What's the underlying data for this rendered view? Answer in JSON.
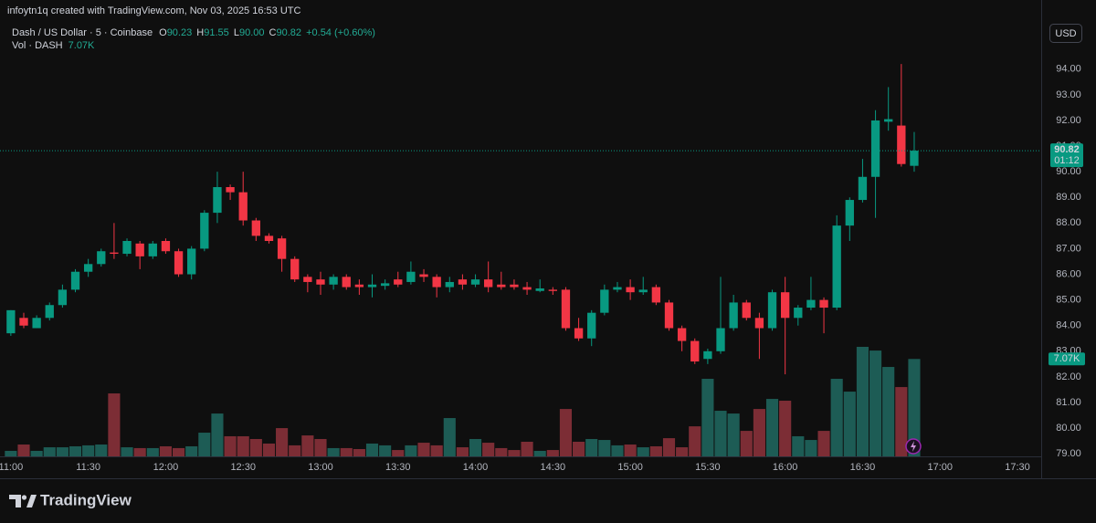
{
  "header": {
    "attribution": "infoytn1q created with TradingView.com, Nov 03, 2025 16:53 UTC"
  },
  "legend": {
    "symbol": "Dash / US Dollar · 5 · Coinbase",
    "o_key": "O",
    "open": "90.23",
    "h_key": "H",
    "high": "91.55",
    "l_key": "L",
    "low": "90.00",
    "c_key": "C",
    "close": "90.82",
    "change": "+0.54 (+0.60%)",
    "vol_name": "Vol · DASH",
    "vol_value": "7.07K"
  },
  "currency": "USD",
  "last_price_label": "90.82",
  "countdown": "01:12",
  "brand": "TradingView",
  "chart_data": {
    "type": "candlestick",
    "x": [
      660,
      665,
      670,
      675,
      680,
      685,
      690,
      695,
      700,
      705,
      710,
      715,
      720,
      725,
      730,
      735,
      740,
      745,
      750,
      755,
      760,
      765,
      770,
      775,
      780,
      785,
      790,
      795,
      800,
      805,
      810,
      815,
      820,
      825,
      830,
      835,
      840,
      845,
      850,
      855,
      860,
      865,
      870,
      875,
      880,
      885,
      890,
      895,
      900,
      905,
      910,
      915,
      920,
      925,
      930,
      935,
      940,
      945,
      950,
      955,
      960,
      965,
      970,
      975,
      980,
      985,
      990,
      995,
      1000,
      1005,
      1010
    ],
    "open": [
      83.7,
      84.3,
      83.9,
      84.3,
      84.8,
      85.4,
      86.1,
      86.4,
      86.85,
      86.8,
      87.2,
      86.7,
      87.3,
      86.9,
      86.0,
      87.0,
      88.4,
      89.4,
      89.2,
      88.1,
      87.5,
      87.4,
      86.6,
      85.9,
      85.8,
      85.6,
      85.9,
      85.6,
      85.5,
      85.55,
      85.8,
      85.7,
      86.0,
      85.9,
      85.5,
      85.8,
      85.6,
      85.8,
      85.6,
      85.6,
      85.5,
      85.35,
      85.4,
      85.4,
      83.9,
      83.5,
      84.5,
      85.4,
      85.5,
      85.3,
      85.5,
      84.9,
      83.9,
      83.4,
      82.7,
      83.0,
      83.9,
      84.9,
      84.3,
      83.9,
      85.3,
      84.3,
      84.7,
      85.0,
      84.7,
      87.9,
      88.9,
      89.8,
      91.95,
      91.8,
      90.23
    ],
    "high": [
      84.6,
      84.5,
      84.4,
      84.9,
      85.6,
      86.2,
      86.6,
      87.0,
      88.0,
      87.4,
      87.3,
      87.3,
      87.4,
      87.0,
      87.1,
      88.5,
      90.0,
      89.5,
      90.0,
      88.2,
      87.6,
      87.5,
      86.7,
      86.0,
      86.1,
      86.0,
      86.0,
      85.8,
      86.0,
      85.8,
      86.1,
      86.5,
      86.2,
      86.0,
      85.9,
      86.0,
      86.0,
      86.5,
      86.1,
      85.8,
      85.7,
      85.8,
      85.5,
      85.5,
      84.3,
      84.6,
      85.6,
      85.7,
      85.8,
      85.9,
      85.6,
      85.0,
      84.0,
      83.5,
      83.1,
      85.9,
      85.2,
      85.0,
      84.5,
      85.4,
      85.9,
      84.8,
      85.9,
      85.1,
      88.3,
      89.0,
      90.5,
      92.4,
      93.3,
      94.2,
      91.55
    ],
    "low": [
      83.6,
      83.9,
      83.9,
      84.2,
      84.7,
      85.3,
      85.9,
      86.3,
      86.6,
      86.7,
      86.2,
      86.6,
      86.8,
      85.9,
      85.8,
      86.9,
      88.0,
      88.9,
      87.9,
      87.3,
      87.2,
      86.1,
      85.7,
      85.3,
      85.2,
      85.4,
      85.4,
      85.2,
      85.1,
      85.4,
      85.5,
      85.6,
      85.7,
      85.1,
      85.3,
      85.4,
      85.5,
      85.3,
      85.4,
      85.4,
      85.2,
      85.3,
      85.2,
      83.8,
      83.4,
      83.2,
      84.4,
      85.3,
      85.0,
      85.2,
      84.8,
      83.8,
      83.0,
      82.5,
      82.5,
      82.9,
      83.8,
      84.2,
      82.7,
      83.8,
      82.1,
      84.0,
      84.6,
      83.7,
      84.6,
      87.3,
      88.8,
      88.2,
      91.6,
      90.2,
      90.0
    ],
    "close": [
      84.6,
      84.0,
      84.3,
      84.8,
      85.4,
      86.1,
      86.4,
      86.9,
      86.8,
      87.3,
      86.7,
      87.2,
      86.9,
      86.0,
      87.0,
      88.4,
      89.4,
      89.2,
      88.1,
      87.5,
      87.3,
      86.6,
      85.8,
      85.7,
      85.6,
      85.9,
      85.5,
      85.5,
      85.6,
      85.65,
      85.6,
      86.1,
      85.9,
      85.5,
      85.7,
      85.6,
      85.8,
      85.5,
      85.5,
      85.5,
      85.4,
      85.45,
      85.35,
      83.9,
      83.5,
      84.5,
      85.4,
      85.5,
      85.3,
      85.4,
      84.9,
      83.9,
      83.4,
      82.6,
      83.0,
      83.9,
      84.9,
      84.3,
      83.9,
      85.3,
      84.3,
      84.7,
      85.0,
      84.7,
      87.9,
      88.9,
      89.8,
      92.0,
      92.05,
      90.3,
      90.82
    ],
    "volume": [
      400,
      860,
      400,
      660,
      660,
      730,
      800,
      860,
      4570,
      660,
      600,
      600,
      730,
      600,
      730,
      1720,
      3110,
      1460,
      1460,
      1260,
      930,
      2050,
      800,
      1520,
      1260,
      600,
      600,
      530,
      930,
      800,
      460,
      800,
      990,
      800,
      2780,
      660,
      1260,
      990,
      600,
      460,
      1060,
      400,
      460,
      3440,
      1060,
      1260,
      1190,
      800,
      860,
      660,
      730,
      1320,
      660,
      2180,
      5630,
      3310,
      3110,
      1850,
      3440,
      4170,
      4040,
      1460,
      1190,
      1850,
      5630,
      4700,
      7950,
      7680,
      6490,
      5030,
      7070
    ],
    "volume_value_labels": {
      "70": "7.07K"
    },
    "xlim": [
      655.8,
      1059.2
    ],
    "xticks": [
      {
        "value": 660,
        "label": "11:00"
      },
      {
        "value": 690,
        "label": "11:30"
      },
      {
        "value": 720,
        "label": "12:00"
      },
      {
        "value": 750,
        "label": "12:30"
      },
      {
        "value": 780,
        "label": "13:00"
      },
      {
        "value": 810,
        "label": "13:30"
      },
      {
        "value": 840,
        "label": "14:00"
      },
      {
        "value": 870,
        "label": "14:30"
      },
      {
        "value": 900,
        "label": "15:00"
      },
      {
        "value": 930,
        "label": "15:30"
      },
      {
        "value": 960,
        "label": "16:00"
      },
      {
        "value": 990,
        "label": "16:30"
      },
      {
        "value": 1020,
        "label": "17:00"
      },
      {
        "value": 1050,
        "label": "17:30"
      }
    ],
    "ylim": [
      78.9,
      95.7
    ],
    "yticks": [
      {
        "value": 79,
        "label": "79.00"
      },
      {
        "value": 80,
        "label": "80.00"
      },
      {
        "value": 81,
        "label": "81.00"
      },
      {
        "value": 82,
        "label": "82.00"
      },
      {
        "value": 83,
        "label": "83.00"
      },
      {
        "value": 84,
        "label": "84.00"
      },
      {
        "value": 85,
        "label": "85.00"
      },
      {
        "value": 86,
        "label": "86.00"
      },
      {
        "value": 87,
        "label": "87.00"
      },
      {
        "value": 88,
        "label": "88.00"
      },
      {
        "value": 89,
        "label": "89.00"
      },
      {
        "value": 90,
        "label": "90.00"
      },
      {
        "value": 91,
        "label": "91.00"
      },
      {
        "value": 92,
        "label": "92.00"
      },
      {
        "value": 93,
        "label": "93.00"
      },
      {
        "value": 94,
        "label": "94.00"
      }
    ],
    "grid": true,
    "up_color": "#089981",
    "down_color": "#f23645",
    "vol_up_color": "#1d5c55",
    "vol_down_color": "#7c2d35"
  }
}
